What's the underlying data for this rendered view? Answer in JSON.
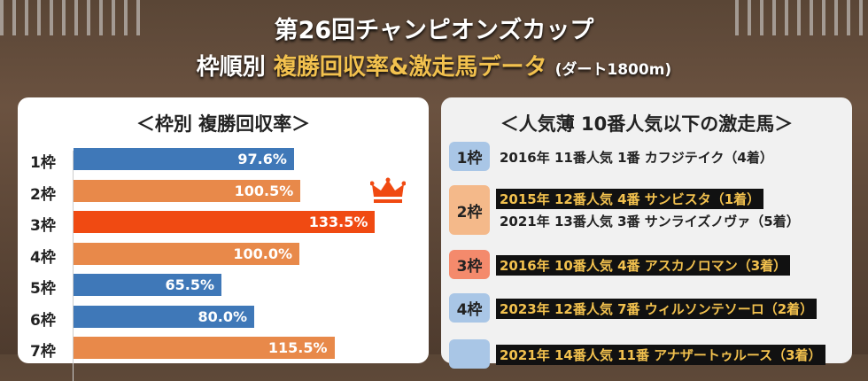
{
  "header": {
    "title": "第26回チャンピオンズカップ",
    "subtitle_a": "枠順別",
    "subtitle_b": "複勝回収率&激走馬データ",
    "subtitle_c": "(ダート1800m)"
  },
  "colors": {
    "blue": "#3f78b8",
    "orange": "#e8894a",
    "red": "#f04a12",
    "highlight_text": "#f2c14e"
  },
  "chart_data": {
    "type": "bar",
    "orientation": "horizontal",
    "title": "＜枠別 複勝回収率＞",
    "categories": [
      "1枠",
      "2枠",
      "3枠",
      "4枠",
      "5枠",
      "6枠",
      "7枠"
    ],
    "values": [
      97.6,
      100.5,
      133.5,
      100.0,
      65.5,
      80.0,
      115.5
    ],
    "labels": [
      "97.6%",
      "100.5%",
      "133.5%",
      "100.0%",
      "65.5%",
      "80.0%",
      "115.5%"
    ],
    "bar_colors": [
      "blue",
      "orange",
      "red",
      "orange",
      "blue",
      "blue",
      "orange"
    ],
    "top_marker": "crown-icon",
    "grid": false
  },
  "longshots": {
    "title": "＜人気薄 10番人気以下の激走馬＞",
    "groups": [
      {
        "badge": "1枠",
        "color": "#a9c6e6",
        "entries": [
          {
            "text": "2016年 11番人気  1番 カフジテイク（4着）",
            "highlight": false
          }
        ]
      },
      {
        "badge": "2枠",
        "color": "#f4b98a",
        "entries": [
          {
            "text": "2015年 12番人気  4番 サンビスタ（1着）",
            "highlight": true
          },
          {
            "text": "2021年 13番人気  3番 サンライズノヴァ（5着）",
            "highlight": false
          }
        ]
      },
      {
        "badge": "3枠",
        "color": "#f48a6c",
        "entries": [
          {
            "text": "2016年 10番人気  4番 アスカノロマン（3着）",
            "highlight": true
          }
        ]
      },
      {
        "badge": "4枠",
        "color": "#a9c6e6",
        "entries": [
          {
            "text": "2023年 12番人気  7番 ウィルソンテソーロ（2着）",
            "highlight": true
          }
        ]
      },
      {
        "badge": "",
        "color": "#a9c6e6",
        "entries": [
          {
            "text": "2021年 14番人気 11番 アナザートゥルース（3着）",
            "highlight": true
          }
        ]
      }
    ]
  }
}
